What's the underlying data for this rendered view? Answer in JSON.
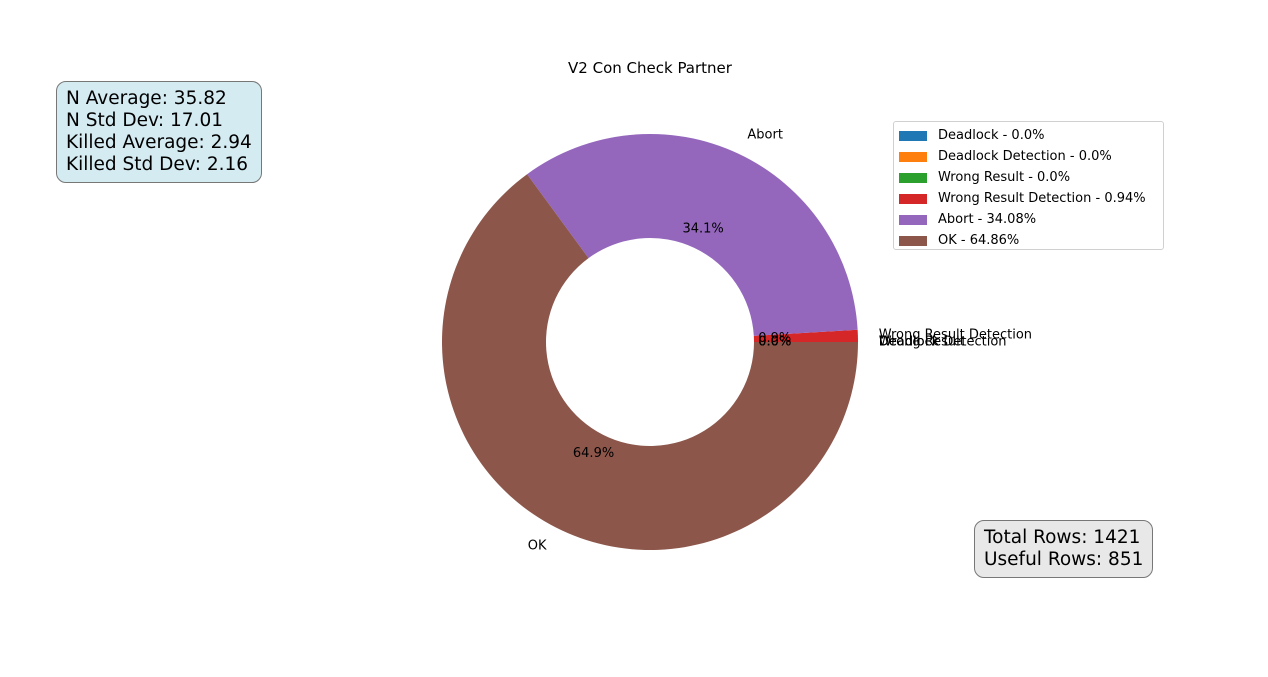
{
  "chart_data": {
    "type": "pie",
    "donut": true,
    "title": "V2 Con Check Partner",
    "categories": [
      "Deadlock",
      "Deadlock Detection",
      "Wrong Result",
      "Wrong Result Detection",
      "Abort",
      "OK"
    ],
    "values": [
      0.0,
      0.0,
      0.0,
      0.94,
      34.08,
      64.86
    ],
    "colors": [
      "#1f77b4",
      "#ff7f0e",
      "#2ca02c",
      "#d62728",
      "#9467bd",
      "#8c564b"
    ],
    "slice_labels": [
      "Deadlock",
      "Deadlock Detection",
      "Wrong Result",
      "Wrong Result Detection",
      "Abort",
      "OK"
    ],
    "pct_labels": [
      "0.0%",
      "0.0%",
      "0.0%",
      "0.9%",
      "34.1%",
      "64.9%"
    ],
    "legend_labels": [
      "Deadlock - 0.0%",
      "Deadlock Detection - 0.0%",
      "Wrong Result - 0.0%",
      "Wrong Result Detection - 0.94%",
      "Abort - 34.08%",
      "OK - 64.86%"
    ],
    "legend_position": "upper-right"
  },
  "stats": {
    "n_average": "N Average: 35.82",
    "n_std_dev": "N Std Dev: 17.01",
    "killed_average": "Killed Average: 2.94",
    "killed_std_dev": "Killed Std Dev: 2.16"
  },
  "rows": {
    "total": "Total Rows: 1421",
    "useful": "Useful Rows: 851"
  }
}
